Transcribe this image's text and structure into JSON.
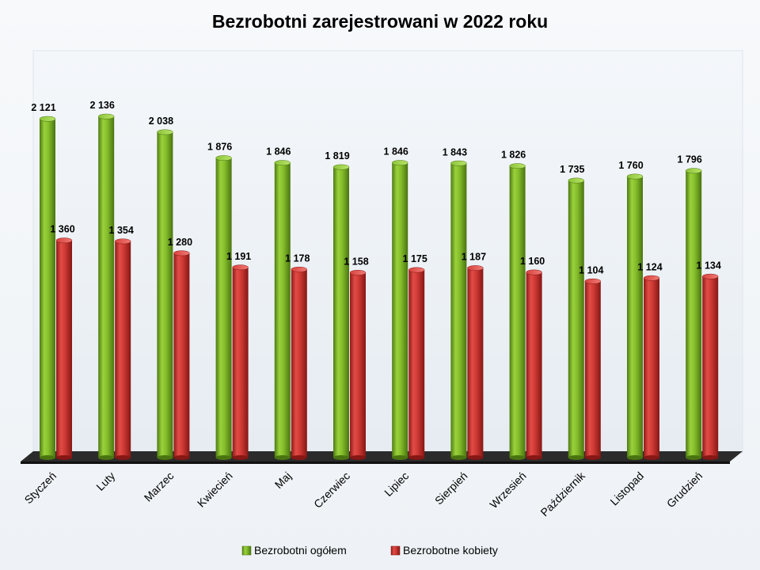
{
  "chart_data": {
    "type": "bar",
    "title": "Bezrobotni zarejestrowani w 2022 roku",
    "categories": [
      "Styczeń",
      "Luty",
      "Marzec",
      "Kwiecień",
      "Maj",
      "Czerwiec",
      "Lipiec",
      "Sierpień",
      "Wrzesień",
      "Październik",
      "Listopad",
      "Grudzień"
    ],
    "series": [
      {
        "name": "Bezrobotni ogółem",
        "color": "#7fb628",
        "values": [
          2121,
          2136,
          2038,
          1876,
          1846,
          1819,
          1846,
          1843,
          1826,
          1735,
          1760,
          1796
        ],
        "labels": [
          "2 121",
          "2 136",
          "2 038",
          "1 876",
          "1 846",
          "1 819",
          "1 846",
          "1 843",
          "1 826",
          "1 735",
          "1 760",
          "1 796"
        ]
      },
      {
        "name": "Bezrobotne kobiety",
        "color": "#c93330",
        "values": [
          1360,
          1354,
          1280,
          1191,
          1178,
          1158,
          1175,
          1187,
          1160,
          1104,
          1124,
          1134
        ],
        "labels": [
          "1 360",
          "1 354",
          "1 280",
          "1 191",
          "1 178",
          "1 158",
          "1 175",
          "1 187",
          "1 160",
          "1 104",
          "1 124",
          "1 134"
        ]
      }
    ],
    "legend_position": "bottom",
    "grid": false,
    "ylim": [
      0,
      2400
    ],
    "style": "3d-cylinder"
  }
}
